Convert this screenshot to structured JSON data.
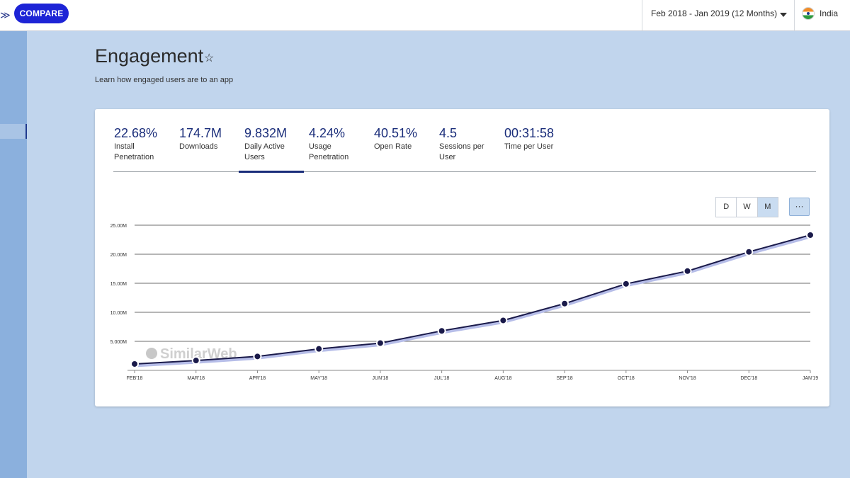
{
  "header": {
    "compare_label": "COMPARE",
    "date_range": "Feb 2018 - Jan 2019 (12 Months)",
    "country": "India"
  },
  "page": {
    "title": "Engagement",
    "subtitle": "Learn how engaged users are to an app"
  },
  "metrics": [
    {
      "value": "22.68%",
      "label": "Install Penetration"
    },
    {
      "value": "174.7M",
      "label": "Downloads"
    },
    {
      "value": "9.832M",
      "label": "Daily Active Users"
    },
    {
      "value": "4.24%",
      "label": "Usage Penetration"
    },
    {
      "value": "40.51%",
      "label": "Open Rate"
    },
    {
      "value": "4.5",
      "label": "Sessions per User"
    },
    {
      "value": "00:31:58",
      "label": "Time per User"
    }
  ],
  "granularity": [
    "D",
    "W",
    "M"
  ],
  "more_label": "···",
  "watermark": "SimilarWeb",
  "colors": {
    "accent": "#1d24d6",
    "line": "#1a1a4a",
    "area": "#b6bde8"
  },
  "chart_data": {
    "type": "line",
    "categories": [
      "FEB'18",
      "MAR'18",
      "APR'18",
      "MAY'18",
      "JUN'18",
      "JUL'18",
      "AUG'18",
      "SEP'18",
      "OCT'18",
      "NOV'18",
      "DEC'18",
      "JAN'19"
    ],
    "values": [
      1.1,
      1.7,
      2.4,
      3.7,
      4.7,
      6.8,
      8.6,
      11.5,
      14.9,
      17.1,
      20.4,
      23.3
    ],
    "unit": "M",
    "y_ticks": [
      "5.000M",
      "10.00M",
      "15.00M",
      "20.00M",
      "25.00M"
    ],
    "ylim": [
      0,
      25
    ],
    "grid": true
  }
}
